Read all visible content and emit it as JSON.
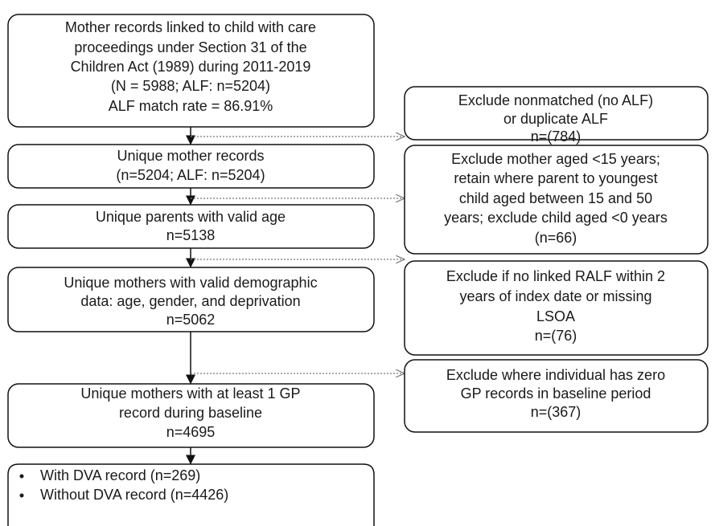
{
  "left_boxes": [
    {
      "lines": [
        "Mother records linked to child with care",
        "proceedings under Section 31 of the",
        "Children Act (1989) during 2011-2019",
        "(N = 5988; ALF: n=5204)",
        "ALF match rate = 86.91%"
      ]
    },
    {
      "lines": [
        "Unique mother records",
        "(n=5204; ALF: n=5204)"
      ]
    },
    {
      "lines": [
        "Unique parents with valid age",
        "n=5138"
      ]
    },
    {
      "lines": [
        "Unique mothers with valid demographic",
        "data: age, gender, and deprivation",
        "n=5062"
      ]
    },
    {
      "lines": [
        "Unique mothers with at least 1 GP",
        "record during baseline",
        "n=4695"
      ]
    }
  ],
  "final_box": {
    "bullets": [
      "With DVA record (n=269)",
      "Without DVA record (n=4426)"
    ]
  },
  "right_boxes": [
    {
      "lines": [
        "Exclude nonmatched (no ALF)",
        "or duplicate ALF",
        "n=(784)"
      ]
    },
    {
      "lines": [
        "Exclude mother aged <15 years;",
        "retain where parent to youngest",
        "child aged between 15 and 50",
        "years; exclude child aged <0 years",
        "(n=66)"
      ]
    },
    {
      "lines": [
        "Exclude if no linked RALF within 2",
        "years of index date or missing",
        "LSOA",
        "n=(76)"
      ]
    },
    {
      "lines": [
        "Exclude where individual has zero",
        "GP records in baseline period",
        "n=(367)"
      ]
    }
  ]
}
